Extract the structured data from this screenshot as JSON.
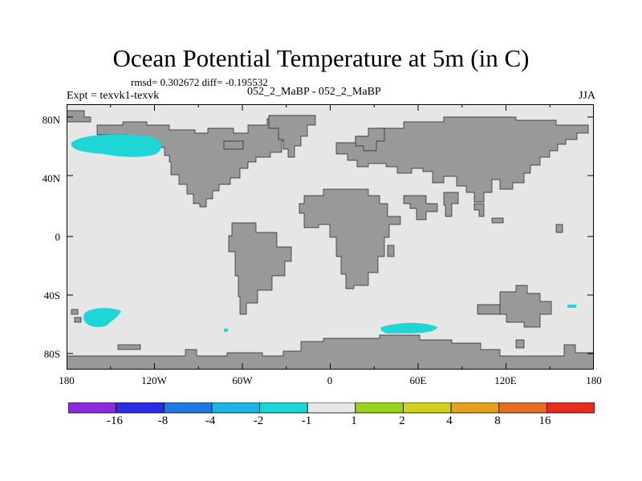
{
  "title": "Ocean Potential Temperature at 5m (in C)",
  "stats": "rmsd= 0.302672  diff= -0.195532",
  "subtitle_left": "Expt = texvk1-texvk",
  "subtitle_center": "052_2_MaBP - 052_2_MaBP",
  "subtitle_right": "JJA",
  "lat_labels": [
    "80N",
    "40N",
    "0",
    "40S",
    "80S"
  ],
  "lon_labels": [
    "180",
    "120W",
    "60W",
    "0",
    "60E",
    "120E",
    "180"
  ],
  "colorbar": {
    "colors": [
      "#8a2be2",
      "#2b2be8",
      "#1e78e6",
      "#1eb4e6",
      "#1ed6d6",
      "#e6e6e6",
      "#96d21e",
      "#d2d21e",
      "#e6a01e",
      "#e66e1e",
      "#e62d1e"
    ],
    "labels": [
      "-16",
      "-8",
      "-4",
      "-2",
      "-1",
      "1",
      "2",
      "4",
      "8",
      "16"
    ]
  },
  "colors": {
    "ocean": "#e6e6e6",
    "land": "#999999",
    "anomaly": "#1ed6d6"
  }
}
